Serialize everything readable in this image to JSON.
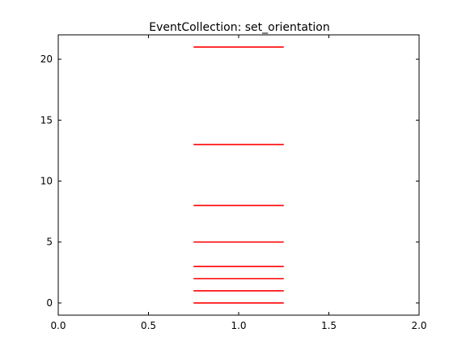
{
  "chart_data": {
    "type": "eventplot",
    "title": "EventCollection: set_orientation",
    "xlabel": "",
    "ylabel": "",
    "xlim": [
      0.0,
      2.0
    ],
    "ylim": [
      -1,
      22
    ],
    "x_ticks": [
      0.0,
      0.5,
      1.0,
      1.5,
      2.0
    ],
    "x_tick_labels": [
      "0.0",
      "0.5",
      "1.0",
      "1.5",
      "2.0"
    ],
    "y_ticks": [
      0,
      5,
      10,
      15,
      20
    ],
    "y_tick_labels": [
      "0",
      "5",
      "10",
      "15",
      "20"
    ],
    "grid": false,
    "orientation": "horizontal",
    "series": [
      {
        "color": "#ff0000",
        "line_x_range": [
          0.75,
          1.25
        ],
        "positions": [
          0,
          1,
          2,
          3,
          5,
          8,
          13,
          21
        ]
      }
    ]
  }
}
